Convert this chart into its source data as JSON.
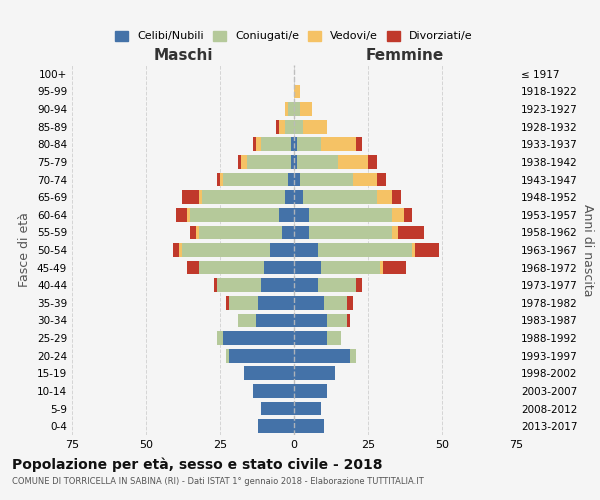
{
  "age_groups": [
    "0-4",
    "5-9",
    "10-14",
    "15-19",
    "20-24",
    "25-29",
    "30-34",
    "35-39",
    "40-44",
    "45-49",
    "50-54",
    "55-59",
    "60-64",
    "65-69",
    "70-74",
    "75-79",
    "80-84",
    "85-89",
    "90-94",
    "95-99",
    "100+"
  ],
  "birth_years": [
    "2013-2017",
    "2008-2012",
    "2003-2007",
    "1998-2002",
    "1993-1997",
    "1988-1992",
    "1983-1987",
    "1978-1982",
    "1973-1977",
    "1968-1972",
    "1963-1967",
    "1958-1962",
    "1953-1957",
    "1948-1952",
    "1943-1947",
    "1938-1942",
    "1933-1937",
    "1928-1932",
    "1923-1927",
    "1918-1922",
    "≤ 1917"
  ],
  "maschi": {
    "celibi": [
      12,
      11,
      14,
      17,
      22,
      24,
      13,
      12,
      11,
      10,
      8,
      4,
      5,
      3,
      2,
      1,
      1,
      0,
      0,
      0,
      0
    ],
    "coniugati": [
      0,
      0,
      0,
      0,
      1,
      2,
      6,
      10,
      15,
      22,
      30,
      28,
      30,
      28,
      22,
      15,
      10,
      3,
      2,
      0,
      0
    ],
    "vedovi": [
      0,
      0,
      0,
      0,
      0,
      0,
      0,
      0,
      0,
      0,
      1,
      1,
      1,
      1,
      1,
      2,
      2,
      2,
      1,
      0,
      0
    ],
    "divorziati": [
      0,
      0,
      0,
      0,
      0,
      0,
      0,
      1,
      1,
      4,
      2,
      2,
      4,
      6,
      1,
      1,
      1,
      1,
      0,
      0,
      0
    ]
  },
  "femmine": {
    "nubili": [
      10,
      9,
      11,
      14,
      19,
      11,
      11,
      10,
      8,
      9,
      8,
      5,
      5,
      3,
      2,
      1,
      1,
      0,
      0,
      0,
      0
    ],
    "coniugate": [
      0,
      0,
      0,
      0,
      2,
      5,
      7,
      8,
      13,
      20,
      32,
      28,
      28,
      25,
      18,
      14,
      8,
      3,
      2,
      0,
      0
    ],
    "vedove": [
      0,
      0,
      0,
      0,
      0,
      0,
      0,
      0,
      0,
      1,
      1,
      2,
      4,
      5,
      8,
      10,
      12,
      8,
      4,
      2,
      0
    ],
    "divorziate": [
      0,
      0,
      0,
      0,
      0,
      0,
      1,
      2,
      2,
      8,
      8,
      9,
      3,
      3,
      3,
      3,
      2,
      0,
      0,
      0,
      0
    ]
  },
  "colors": {
    "celibi_nubili": "#4472a8",
    "coniugati": "#b5c99a",
    "vedovi": "#f5c265",
    "divorziati": "#c0392b"
  },
  "xlim": 75,
  "title": "Popolazione per età, sesso e stato civile - 2018",
  "subtitle": "COMUNE DI TORRICELLA IN SABINA (RI) - Dati ISTAT 1° gennaio 2018 - Elaborazione TUTTITALIA.IT",
  "xlabel_left": "Maschi",
  "xlabel_right": "Femmine",
  "ylabel_left": "Fasce di età",
  "ylabel_right": "Anni di nascita",
  "bg_color": "#f5f5f5",
  "grid_color": "#cccccc"
}
